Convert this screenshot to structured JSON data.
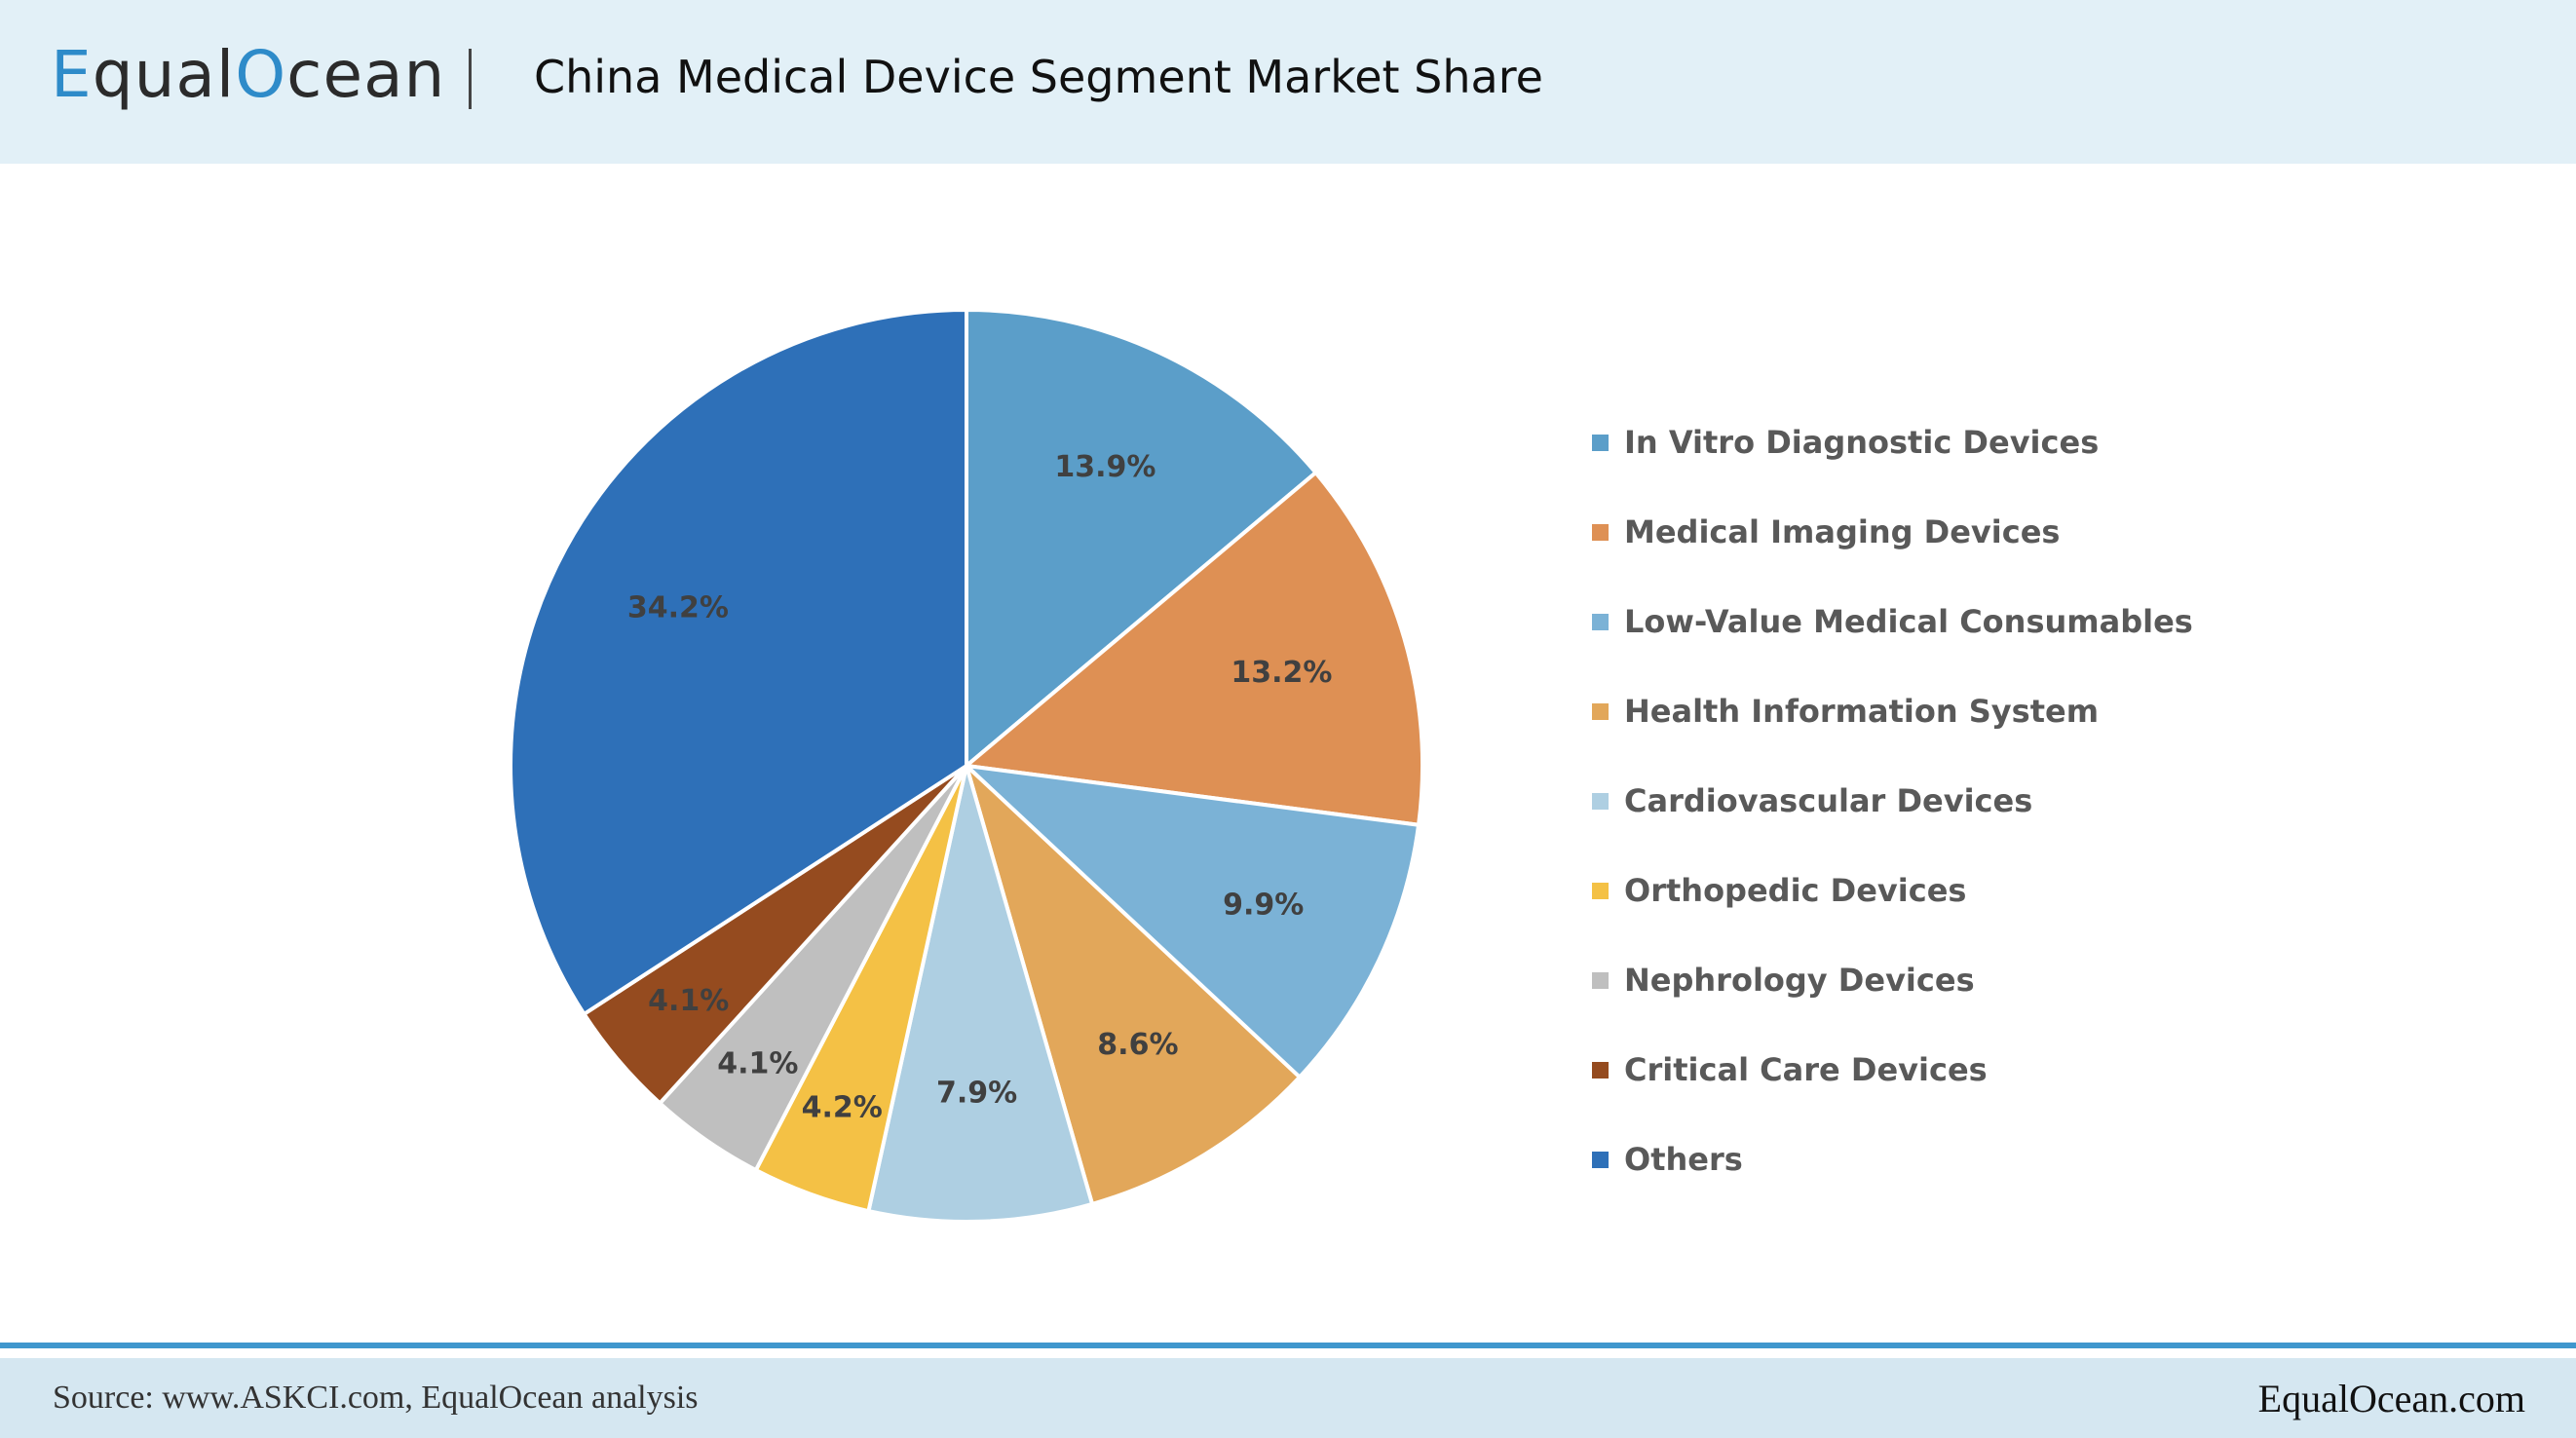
{
  "header": {
    "logo_prefix": "E",
    "logo_mid": "qual",
    "logo_o": "O",
    "logo_suffix": "cean",
    "title": "China Medical Device Segment Market Share"
  },
  "chart_data": {
    "type": "pie",
    "title": "China Medical Device Segment Market Share",
    "categories": [
      "In Vitro Diagnostic Devices",
      "Medical Imaging Devices",
      "Low-Value Medical Consumables",
      "Health Information System",
      "Cardiovascular Devices",
      "Orthopedic Devices",
      "Nephrology Devices",
      "Critical Care Devices",
      "Others"
    ],
    "values": [
      13.9,
      13.2,
      9.9,
      8.6,
      7.9,
      4.2,
      4.1,
      4.1,
      34.2
    ],
    "data_labels": [
      "13.9%",
      "13.2%",
      "9.9%",
      "8.6%",
      "7.9%",
      "4.2%",
      "4.1%",
      "4.1%",
      "34.2%"
    ],
    "colors": [
      "#5b9ec9",
      "#de9054",
      "#7bb2d6",
      "#e2a75a",
      "#aecfe2",
      "#f4c145",
      "#bfbfbf",
      "#954b1f",
      "#2e70b8"
    ],
    "start_angle_deg": 0,
    "direction": "clockwise",
    "legend_position": "right"
  },
  "footer": {
    "source": "Source: www.ASKCI.com, EqualOcean analysis",
    "brand": "EqualOcean.com"
  }
}
